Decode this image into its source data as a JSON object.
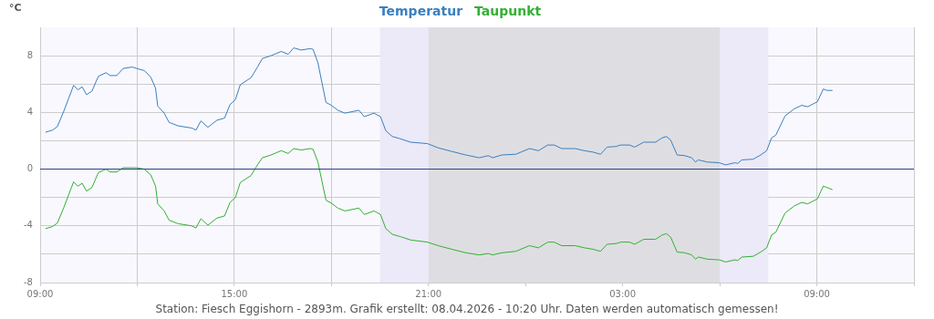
{
  "chart_data": {
    "type": "line",
    "ylabel": "°C",
    "legend": "top",
    "grid": true,
    "marker": "none",
    "line_style": "solid",
    "xlim": [
      "2026-04-07T09:00",
      "2026-04-08T12:00"
    ],
    "ylim": [
      -8,
      10
    ],
    "xticks": [
      {
        "value": "2026-04-07T09:00",
        "label": "09:00"
      },
      {
        "value": "2026-04-07T12:00",
        "label": null
      },
      {
        "value": "2026-04-07T15:00",
        "label": "15:00"
      },
      {
        "value": "2026-04-07T18:00",
        "label": null
      },
      {
        "value": "2026-04-07T21:00",
        "label": "21:00"
      },
      {
        "value": "2026-04-08T00:00",
        "label": null
      },
      {
        "value": "2026-04-08T03:00",
        "label": "03:00"
      },
      {
        "value": "2026-04-08T06:00",
        "label": null
      },
      {
        "value": "2026-04-08T09:00",
        "label": "09:00"
      },
      {
        "value": "2026-04-08T12:00",
        "label": null
      }
    ],
    "yticks": [
      -8,
      {
        "value": -6,
        "label": null
      },
      -4,
      {
        "value": -2,
        "label": null
      },
      0,
      {
        "value": 2,
        "label": null
      },
      4,
      {
        "value": 6,
        "label": null
      },
      8
    ],
    "x": [
      "2026-04-07T09:10",
      "2026-04-07T09:23",
      "2026-04-07T09:32",
      "2026-04-07T09:44",
      "2026-04-07T09:54",
      "2026-04-07T10:02",
      "2026-04-07T10:10",
      "2026-04-07T10:18",
      "2026-04-07T10:26",
      "2026-04-07T10:36",
      "2026-04-07T10:48",
      "2026-04-07T11:02",
      "2026-04-07T11:10",
      "2026-04-07T11:22",
      "2026-04-07T11:34",
      "2026-04-07T11:51",
      "2026-04-07T11:59",
      "2026-04-07T12:13",
      "2026-04-07T12:25",
      "2026-04-07T12:34",
      "2026-04-07T12:38",
      "2026-04-07T12:50",
      "2026-04-07T12:59",
      "2026-04-07T13:16",
      "2026-04-07T13:41",
      "2026-04-07T13:49",
      "2026-04-07T13:58",
      "2026-04-07T14:11",
      "2026-04-07T14:28",
      "2026-04-07T14:42",
      "2026-04-07T14:52",
      "2026-04-07T15:02",
      "2026-04-07T15:11",
      "2026-04-07T15:31",
      "2026-04-07T15:43",
      "2026-04-07T15:52",
      "2026-04-07T16:08",
      "2026-04-07T16:27",
      "2026-04-07T16:40",
      "2026-04-07T16:50",
      "2026-04-07T17:04",
      "2026-04-07T17:21",
      "2026-04-07T17:26",
      "2026-04-07T17:35",
      "2026-04-07T17:50",
      "2026-04-07T18:00",
      "2026-04-07T18:12",
      "2026-04-07T18:25",
      "2026-04-07T18:51",
      "2026-04-07T19:01",
      "2026-04-07T19:19",
      "2026-04-07T19:31",
      "2026-04-07T19:41",
      "2026-04-07T19:53",
      "2026-04-07T20:07",
      "2026-04-07T20:27",
      "2026-04-07T20:58",
      "2026-04-07T21:18",
      "2026-04-07T21:43",
      "2026-04-07T22:09",
      "2026-04-07T22:34",
      "2026-04-07T22:51",
      "2026-04-07T22:59",
      "2026-04-07T23:16",
      "2026-04-07T23:42",
      "2026-04-08T00:07",
      "2026-04-08T00:24",
      "2026-04-08T00:41",
      "2026-04-08T00:53",
      "2026-04-08T01:07",
      "2026-04-08T01:32",
      "2026-04-08T01:49",
      "2026-04-08T02:05",
      "2026-04-08T02:19",
      "2026-04-08T02:31",
      "2026-04-08T02:48",
      "2026-04-08T02:56",
      "2026-04-08T03:13",
      "2026-04-08T03:22",
      "2026-04-08T03:39",
      "2026-04-08T04:01",
      "2026-04-08T04:13",
      "2026-04-08T04:21",
      "2026-04-08T04:29",
      "2026-04-08T04:41",
      "2026-04-08T04:55",
      "2026-04-08T05:08",
      "2026-04-08T05:15",
      "2026-04-08T05:20",
      "2026-04-08T05:37",
      "2026-04-08T05:59",
      "2026-04-08T06:11",
      "2026-04-08T06:28",
      "2026-04-08T06:33",
      "2026-04-08T06:41",
      "2026-04-08T07:02",
      "2026-04-08T07:16",
      "2026-04-08T07:27",
      "2026-04-08T07:36",
      "2026-04-08T07:44",
      "2026-04-08T08:01",
      "2026-04-08T08:18",
      "2026-04-08T08:32",
      "2026-04-08T08:43",
      "2026-04-08T09:01",
      "2026-04-08T09:12",
      "2026-04-08T09:19",
      "2026-04-08T09:29"
    ],
    "series": [
      {
        "name": "Temperatur",
        "color": "#3a7fc0",
        "values": [
          2.6,
          2.75,
          3.0,
          4.1,
          5.1,
          5.9,
          5.6,
          5.8,
          5.25,
          5.5,
          6.55,
          6.8,
          6.6,
          6.6,
          7.1,
          7.2,
          7.1,
          6.95,
          6.5,
          5.7,
          4.45,
          3.95,
          3.3,
          3.05,
          2.9,
          2.75,
          3.4,
          2.95,
          3.45,
          3.6,
          4.55,
          4.9,
          5.95,
          6.45,
          7.2,
          7.8,
          8.0,
          8.3,
          8.1,
          8.55,
          8.4,
          8.5,
          8.45,
          7.5,
          4.7,
          4.5,
          4.15,
          3.95,
          4.15,
          3.7,
          3.95,
          3.7,
          2.7,
          2.3,
          2.15,
          1.9,
          1.8,
          1.5,
          1.25,
          1.0,
          0.8,
          0.95,
          0.8,
          1.0,
          1.05,
          1.45,
          1.3,
          1.7,
          1.7,
          1.45,
          1.45,
          1.3,
          1.2,
          1.05,
          1.55,
          1.6,
          1.7,
          1.7,
          1.55,
          1.9,
          1.9,
          2.2,
          2.3,
          2.05,
          1.0,
          0.95,
          0.8,
          0.5,
          0.65,
          0.5,
          0.45,
          0.3,
          0.45,
          0.4,
          0.65,
          0.7,
          1.0,
          1.3,
          2.2,
          2.4,
          3.75,
          4.25,
          4.5,
          4.4,
          4.75,
          5.65,
          5.55,
          5.55
        ]
      },
      {
        "name": "Taupunkt",
        "color": "#33b033",
        "values": [
          -4.2,
          -4.05,
          -3.8,
          -2.7,
          -1.7,
          -0.9,
          -1.2,
          -1.0,
          -1.55,
          -1.3,
          -0.25,
          0.0,
          -0.2,
          -0.2,
          0.1,
          0.1,
          0.1,
          0.0,
          -0.4,
          -1.2,
          -2.45,
          -2.95,
          -3.6,
          -3.85,
          -4.0,
          -4.15,
          -3.5,
          -3.95,
          -3.45,
          -3.3,
          -2.35,
          -2.0,
          -0.95,
          -0.45,
          0.3,
          0.8,
          1.0,
          1.3,
          1.1,
          1.45,
          1.35,
          1.45,
          1.4,
          0.5,
          -2.2,
          -2.4,
          -2.75,
          -2.95,
          -2.75,
          -3.2,
          -2.95,
          -3.2,
          -4.2,
          -4.6,
          -4.75,
          -5.0,
          -5.15,
          -5.4,
          -5.65,
          -5.9,
          -6.05,
          -5.95,
          -6.05,
          -5.9,
          -5.8,
          -5.4,
          -5.55,
          -5.15,
          -5.15,
          -5.4,
          -5.4,
          -5.55,
          -5.65,
          -5.8,
          -5.3,
          -5.25,
          -5.15,
          -5.15,
          -5.3,
          -4.95,
          -4.95,
          -4.65,
          -4.55,
          -4.8,
          -5.85,
          -5.9,
          -6.05,
          -6.35,
          -6.2,
          -6.35,
          -6.4,
          -6.55,
          -6.4,
          -6.45,
          -6.2,
          -6.15,
          -5.85,
          -5.55,
          -4.65,
          -4.45,
          -3.1,
          -2.6,
          -2.35,
          -2.45,
          -2.1,
          -1.2,
          -1.3,
          -1.45
        ]
      }
    ],
    "ref_lines": [
      {
        "axis": "y",
        "value": 0,
        "color": "#2a3f8a"
      }
    ],
    "bands": [
      {
        "axis": "x",
        "from": "2026-04-07T19:30",
        "to": "2026-04-08T07:30",
        "color": "#ece9f8"
      },
      {
        "axis": "x",
        "from": "2026-04-07T21:00",
        "to": "2026-04-08T06:00",
        "color": "#dedee2"
      }
    ],
    "annotations": [
      "Station: Fiesch Eggishorn - 2893m. Grafik erstellt: 08.04.2026 - 10:20 Uhr. Daten werden automatisch gemessen!"
    ]
  }
}
